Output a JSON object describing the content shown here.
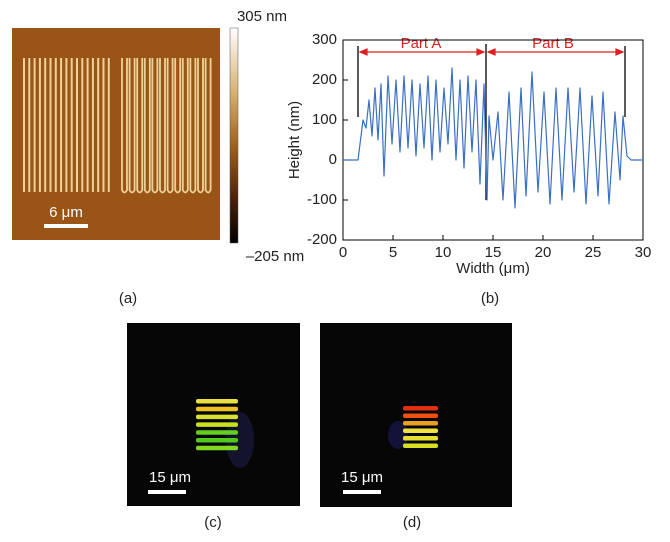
{
  "panels": [
    {
      "label": "(a)",
      "scale_bar": "6 μm",
      "colorbar_max": "305 nm",
      "colorbar_min": "–205 nm"
    },
    {
      "label": "(c)",
      "scale_bar": "15 μm"
    },
    {
      "label": "(d)",
      "scale_bar": "15 μm"
    }
  ],
  "chart_data": {
    "type": "line",
    "panel_label": "(b)",
    "x_label": "Width (μm)",
    "y_label": "Height (nm)",
    "annotations": [
      "Part A",
      "Part B"
    ],
    "xlim": [
      0,
      30
    ],
    "xticks": [
      0,
      5,
      10,
      15,
      20,
      25,
      30
    ],
    "ylim": [
      -200,
      300
    ],
    "yticks": [
      -200,
      -100,
      0,
      100,
      200,
      300
    ],
    "series": [
      {
        "color": "#3a6fc4",
        "x": [
          0,
          1.5,
          1.8,
          2.0,
          2.3,
          2.6,
          2.9,
          3.2,
          3.5,
          3.8,
          4.1,
          4.5,
          4.9,
          5.3,
          5.7,
          6.1,
          6.5,
          6.9,
          7.3,
          7.7,
          8.1,
          8.5,
          8.9,
          9.3,
          9.7,
          10.1,
          10.5,
          10.9,
          11.3,
          11.7,
          12.1,
          12.5,
          12.9,
          13.3,
          13.7,
          14.1,
          14.4,
          14.6,
          15.0,
          15.5,
          16.0,
          16.6,
          17.2,
          17.8,
          18.3,
          18.9,
          19.5,
          20.1,
          20.7,
          21.3,
          21.9,
          22.5,
          23.1,
          23.7,
          24.3,
          24.9,
          25.5,
          26.0,
          26.6,
          27.2,
          27.7,
          28.0,
          28.4,
          28.8,
          30
        ],
        "values": [
          0,
          0,
          60,
          100,
          80,
          150,
          60,
          180,
          50,
          190,
          -40,
          210,
          40,
          200,
          20,
          210,
          30,
          200,
          10,
          190,
          30,
          210,
          0,
          200,
          20,
          180,
          40,
          230,
          0,
          200,
          -20,
          210,
          20,
          200,
          -60,
          190,
          -100,
          110,
          0,
          120,
          -100,
          170,
          -120,
          180,
          -90,
          220,
          -80,
          170,
          -110,
          180,
          -100,
          180,
          -80,
          180,
          -110,
          160,
          -90,
          170,
          -110,
          120,
          -50,
          110,
          10,
          0,
          0
        ]
      }
    ]
  }
}
